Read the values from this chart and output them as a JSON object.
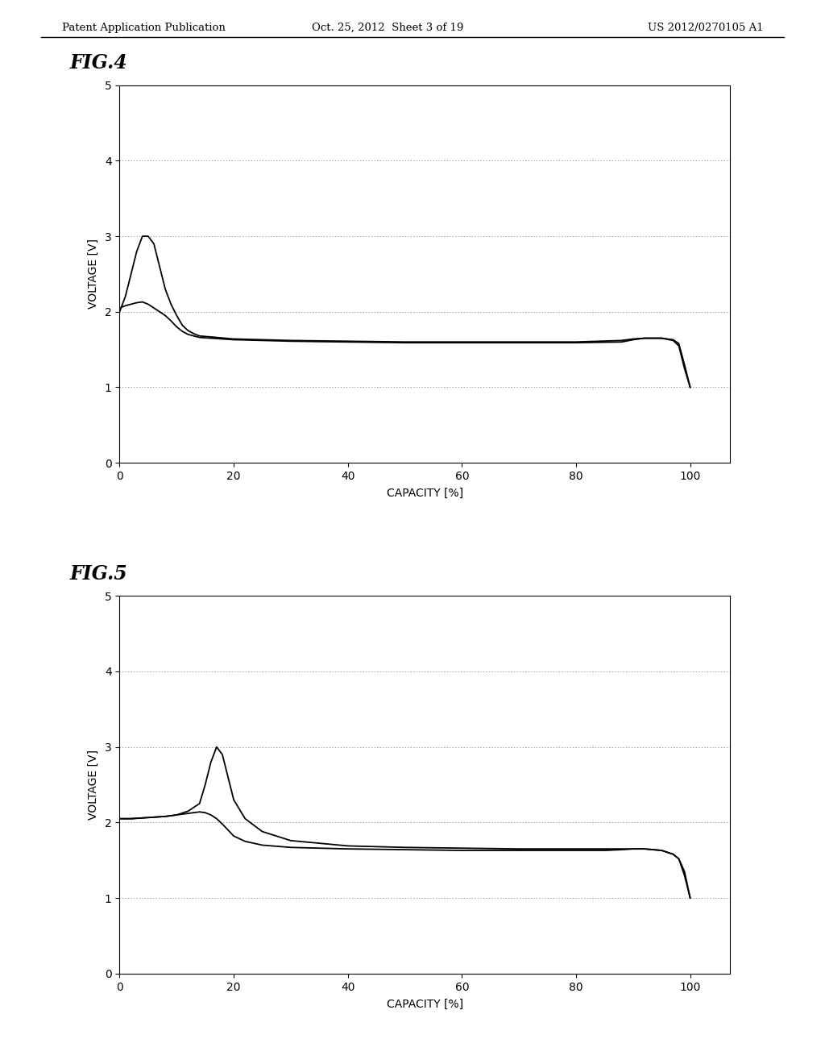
{
  "header_left": "Patent Application Publication",
  "header_center": "Oct. 25, 2012  Sheet 3 of 19",
  "header_right": "US 2012/0270105 A1",
  "fig4_label": "FIG.4",
  "fig5_label": "FIG.5",
  "xlabel": "CAPACITY [%]",
  "ylabel": "VOLTAGE [V]",
  "xlim": [
    0,
    107
  ],
  "ylim": [
    0,
    5
  ],
  "xticks": [
    0,
    20,
    40,
    60,
    80,
    100
  ],
  "yticks": [
    0,
    1,
    2,
    3,
    4,
    5
  ],
  "grid_color": "#777777",
  "line_color": "#000000",
  "background_color": "#ffffff",
  "fig4": {
    "curve1_x": [
      0,
      1,
      2,
      3,
      4,
      5,
      6,
      7,
      8,
      9,
      10,
      11,
      12,
      13,
      14,
      20,
      30,
      40,
      50,
      60,
      70,
      80,
      88,
      90,
      92,
      95,
      97,
      98,
      99,
      100
    ],
    "curve1_y": [
      2.05,
      2.08,
      2.1,
      2.12,
      2.13,
      2.1,
      2.05,
      2.0,
      1.95,
      1.88,
      1.8,
      1.74,
      1.7,
      1.68,
      1.66,
      1.63,
      1.61,
      1.6,
      1.59,
      1.59,
      1.59,
      1.59,
      1.6,
      1.63,
      1.65,
      1.65,
      1.63,
      1.58,
      1.3,
      1.0
    ],
    "curve2_x": [
      0,
      1,
      2,
      3,
      4,
      5,
      6,
      7,
      8,
      9,
      10,
      11,
      12,
      13,
      14,
      20,
      30,
      40,
      50,
      60,
      70,
      80,
      88,
      90,
      92,
      95,
      97,
      98,
      99,
      100
    ],
    "curve2_y": [
      2.0,
      2.2,
      2.5,
      2.8,
      3.0,
      3.0,
      2.9,
      2.6,
      2.3,
      2.1,
      1.95,
      1.82,
      1.75,
      1.71,
      1.68,
      1.64,
      1.62,
      1.61,
      1.6,
      1.6,
      1.6,
      1.6,
      1.62,
      1.64,
      1.65,
      1.65,
      1.62,
      1.55,
      1.25,
      1.0
    ]
  },
  "fig5": {
    "curve1_x": [
      0,
      2,
      4,
      6,
      8,
      10,
      12,
      14,
      15,
      16,
      17,
      18,
      19,
      20,
      22,
      25,
      30,
      40,
      50,
      60,
      70,
      80,
      85,
      88,
      90,
      92,
      95,
      97,
      98,
      99,
      100
    ],
    "curve1_y": [
      2.05,
      2.05,
      2.06,
      2.07,
      2.08,
      2.1,
      2.12,
      2.14,
      2.13,
      2.1,
      2.05,
      1.98,
      1.9,
      1.82,
      1.75,
      1.7,
      1.67,
      1.65,
      1.64,
      1.63,
      1.63,
      1.63,
      1.63,
      1.64,
      1.65,
      1.65,
      1.63,
      1.58,
      1.52,
      1.35,
      1.0
    ],
    "curve2_x": [
      0,
      2,
      4,
      6,
      8,
      10,
      12,
      14,
      15,
      16,
      17,
      18,
      19,
      20,
      22,
      25,
      30,
      40,
      50,
      60,
      70,
      80,
      85,
      88,
      90,
      92,
      95,
      97,
      98,
      99,
      100
    ],
    "curve2_y": [
      2.05,
      2.05,
      2.06,
      2.07,
      2.08,
      2.1,
      2.15,
      2.25,
      2.5,
      2.8,
      3.0,
      2.9,
      2.6,
      2.3,
      2.05,
      1.88,
      1.76,
      1.69,
      1.67,
      1.66,
      1.65,
      1.65,
      1.65,
      1.65,
      1.65,
      1.65,
      1.63,
      1.58,
      1.52,
      1.3,
      1.0
    ]
  }
}
